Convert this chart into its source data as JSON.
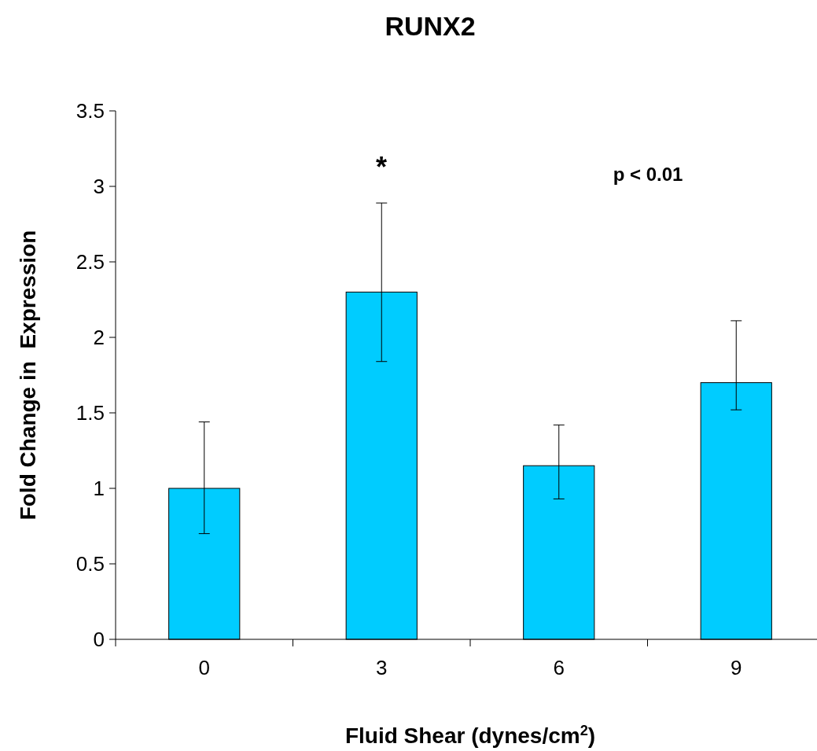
{
  "chart_data": {
    "type": "bar",
    "title": "RUNX2",
    "xlabel": "Fluid Shear (dynes/cm$^{2}$)",
    "ylabel": "Fold Change in  Expression",
    "categories": [
      "0",
      "3",
      "6",
      "9"
    ],
    "values": [
      1.0,
      2.3,
      1.15,
      1.7
    ],
    "errors": [
      [
        0.7,
        1.44
      ],
      [
        1.84,
        2.89
      ],
      [
        0.93,
        1.42
      ],
      [
        1.52,
        2.11
      ]
    ],
    "color": "#00ccff",
    "ylim": [
      0,
      3.5
    ],
    "yticks": [
      0,
      {
        "value": 0.5,
        "label": "0.5"
      },
      1,
      {
        "value": 1.5,
        "label": "1.5"
      },
      2,
      {
        "value": 2.5,
        "label": "2.5"
      },
      3,
      {
        "value": 3.5,
        "label": "3.5"
      }
    ],
    "grid": false,
    "annotations": [
      "*",
      "p < 0.01"
    ]
  }
}
